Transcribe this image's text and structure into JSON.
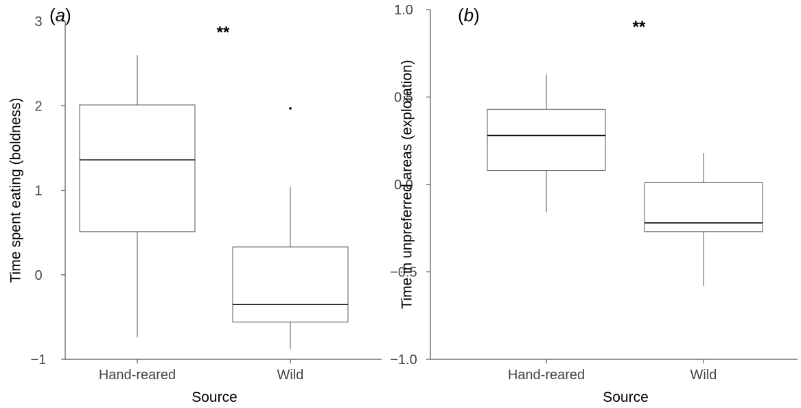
{
  "chart_data": [
    {
      "type": "boxplot",
      "panel_label": "(a)",
      "panel_letter": "a",
      "significance": "**",
      "xlabel": "Source",
      "ylabel": "Time spent eating (boldness)",
      "ylim": [
        -1,
        3
      ],
      "yticks": [
        {
          "value": -1,
          "label": "−1"
        },
        {
          "value": 0,
          "label": "0"
        },
        {
          "value": 1,
          "label": "1"
        },
        {
          "value": 2,
          "label": "2"
        },
        {
          "value": 3,
          "label": "3"
        }
      ],
      "categories": [
        "Hand-reared",
        "Wild"
      ],
      "boxes": [
        {
          "category": "Hand-reared",
          "whisker_low": -0.74,
          "q1": 0.51,
          "median": 1.36,
          "q3": 2.01,
          "whisker_high": 2.6,
          "outliers": []
        },
        {
          "category": "Wild",
          "whisker_low": -0.88,
          "q1": -0.56,
          "median": -0.35,
          "q3": 0.33,
          "whisker_high": 1.04,
          "outliers": [
            1.97
          ]
        }
      ],
      "colors": {
        "box_stroke": "#555555",
        "median": "#000000",
        "axis": "#555555"
      }
    },
    {
      "type": "boxplot",
      "panel_label": "(b)",
      "panel_letter": "b",
      "significance": "**",
      "xlabel": "Source",
      "ylabel": "Time in unpreferred areas (exploration)",
      "ylim": [
        -1.0,
        1.0
      ],
      "yticks": [
        {
          "value": -1.0,
          "label": "−1.0"
        },
        {
          "value": -0.5,
          "label": "−0.5"
        },
        {
          "value": 0.0,
          "label": "0.0"
        },
        {
          "value": 0.5,
          "label": "0.5"
        },
        {
          "value": 1.0,
          "label": "1.0"
        }
      ],
      "categories": [
        "Hand-reared",
        "Wild"
      ],
      "boxes": [
        {
          "category": "Hand-reared",
          "whisker_low": -0.16,
          "q1": 0.08,
          "median": 0.28,
          "q3": 0.43,
          "whisker_high": 0.63,
          "outliers": []
        },
        {
          "category": "Wild",
          "whisker_low": -0.58,
          "q1": -0.27,
          "median": -0.22,
          "q3": 0.01,
          "whisker_high": 0.18,
          "outliers": []
        }
      ],
      "colors": {
        "box_stroke": "#555555",
        "median": "#000000",
        "axis": "#555555"
      }
    }
  ]
}
